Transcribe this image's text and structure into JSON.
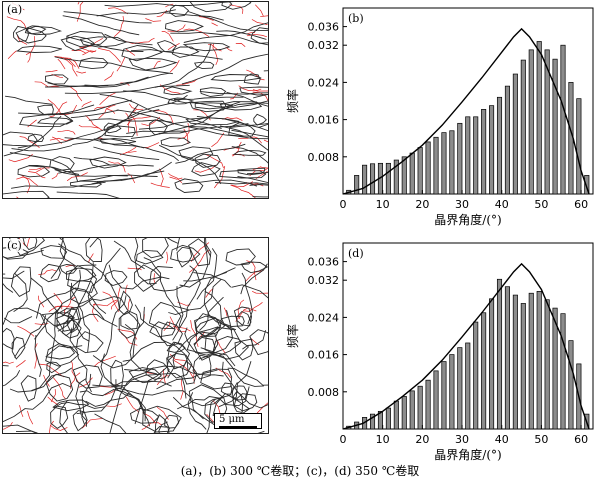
{
  "maps": [
    {
      "label": "(a)",
      "scalebar": ""
    },
    {
      "label": "(c)",
      "scalebar": "5 μm"
    }
  ],
  "caption": "(a)，(b) 300 ℃卷取；(c)，(d) 350 ℃卷取",
  "colors": {
    "bar_fill": "#8c8c8c",
    "bar_stroke": "#000000",
    "curve": "#000000",
    "boundary_high": "#2a2a2a",
    "boundary_low": "#e02020"
  },
  "chart_data": [
    {
      "type": "bar",
      "panel_label": "(b)",
      "xlabel": "晶界角度/(°)",
      "ylabel": "频率",
      "xlim": [
        0,
        63
      ],
      "ylim": [
        0,
        0.04
      ],
      "xticks": [
        0,
        10,
        20,
        30,
        40,
        50,
        60
      ],
      "yticks": [
        0.008,
        0.016,
        0.024,
        0.032,
        0.036
      ],
      "ytick_labels": [
        "0.008",
        "0.016",
        "0.024",
        "0.032",
        "0.036"
      ],
      "bin_width": 2,
      "x": [
        2,
        4,
        6,
        8,
        10,
        12,
        14,
        16,
        18,
        20,
        22,
        24,
        26,
        28,
        30,
        32,
        34,
        36,
        38,
        40,
        42,
        44,
        46,
        48,
        50,
        52,
        54,
        56,
        58,
        60,
        62
      ],
      "values": [
        0.0008,
        0.004,
        0.0062,
        0.0065,
        0.0066,
        0.0066,
        0.0073,
        0.008,
        0.0088,
        0.01,
        0.0112,
        0.0122,
        0.0132,
        0.0136,
        0.0152,
        0.0166,
        0.0166,
        0.0182,
        0.019,
        0.0208,
        0.0232,
        0.0258,
        0.0288,
        0.031,
        0.0328,
        0.031,
        0.029,
        0.032,
        0.024,
        0.0205,
        0.004
      ],
      "curve": {
        "x": [
          0,
          5,
          10,
          15,
          20,
          25,
          30,
          35,
          40,
          43,
          45,
          47,
          50,
          55,
          58,
          60,
          62
        ],
        "y": [
          0.0,
          0.0012,
          0.0038,
          0.007,
          0.0105,
          0.0148,
          0.0198,
          0.025,
          0.0305,
          0.0338,
          0.0355,
          0.0338,
          0.03,
          0.02,
          0.012,
          0.005,
          0.0
        ]
      }
    },
    {
      "type": "bar",
      "panel_label": "(d)",
      "xlabel": "晶界角度/(°)",
      "ylabel": "频率",
      "xlim": [
        0,
        63
      ],
      "ylim": [
        0,
        0.04
      ],
      "xticks": [
        0,
        10,
        20,
        30,
        40,
        50,
        60
      ],
      "yticks": [
        0.008,
        0.016,
        0.024,
        0.032,
        0.036
      ],
      "ytick_labels": [
        "0.008",
        "0.016",
        "0.024",
        "0.032",
        "0.036"
      ],
      "bin_width": 2,
      "x": [
        2,
        4,
        6,
        8,
        10,
        12,
        14,
        16,
        18,
        20,
        22,
        24,
        26,
        28,
        30,
        32,
        34,
        36,
        38,
        40,
        42,
        44,
        46,
        48,
        50,
        52,
        54,
        56,
        58,
        60,
        62
      ],
      "values": [
        0.0006,
        0.0015,
        0.0025,
        0.0032,
        0.0038,
        0.0045,
        0.006,
        0.007,
        0.0082,
        0.0092,
        0.0105,
        0.0125,
        0.0145,
        0.016,
        0.0175,
        0.0185,
        0.023,
        0.025,
        0.028,
        0.0322,
        0.0306,
        0.0288,
        0.027,
        0.0292,
        0.0296,
        0.0278,
        0.026,
        0.0248,
        0.019,
        0.014,
        0.0032
      ],
      "curve": {
        "x": [
          0,
          5,
          10,
          15,
          20,
          25,
          30,
          35,
          40,
          43,
          45,
          47,
          50,
          55,
          58,
          60,
          62
        ],
        "y": [
          0.0,
          0.0012,
          0.0038,
          0.007,
          0.0105,
          0.0148,
          0.0198,
          0.025,
          0.0305,
          0.0338,
          0.0355,
          0.0338,
          0.03,
          0.02,
          0.012,
          0.005,
          0.0
        ]
      }
    }
  ]
}
